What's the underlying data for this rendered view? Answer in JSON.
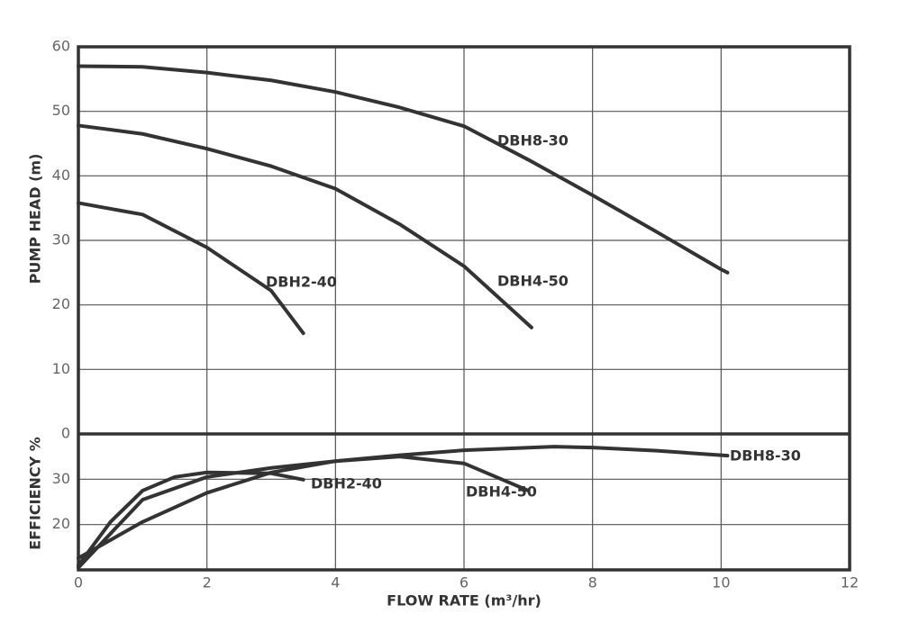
{
  "chart_data": [
    {
      "type": "line",
      "ylabel": "PUMP HEAD (m)",
      "xlim": [
        0,
        12
      ],
      "ylim": [
        0,
        60
      ],
      "yticks": [
        0,
        10,
        20,
        30,
        40,
        50,
        60
      ],
      "grid": true,
      "series": [
        {
          "name": "DBH8-30",
          "color": "#333333",
          "x": [
            0,
            1,
            2,
            3,
            4,
            5,
            6,
            7,
            8,
            9,
            10,
            10.1
          ],
          "values": [
            57,
            56.9,
            56,
            54.8,
            53,
            50.6,
            47.7,
            42.5,
            37,
            31.3,
            25.5,
            25
          ]
        },
        {
          "name": "DBH4-50",
          "color": "#333333",
          "x": [
            0,
            1,
            2,
            3,
            4,
            5,
            6,
            7.05
          ],
          "values": [
            47.8,
            46.5,
            44.2,
            41.5,
            38,
            32.5,
            26,
            16.5
          ]
        },
        {
          "name": "DBH2-40",
          "color": "#333333",
          "x": [
            0,
            1,
            2,
            3,
            3.5
          ],
          "values": [
            35.8,
            34,
            28.9,
            22.2,
            15.6
          ]
        }
      ]
    },
    {
      "type": "line",
      "ylabel": "EFFICIENCY %",
      "xlabel": "FLOW RATE (m³/hr)",
      "xlim": [
        0,
        12
      ],
      "xticks": [
        0,
        2,
        4,
        6,
        8,
        10,
        12
      ],
      "ylim": [
        10,
        40
      ],
      "yticks": [
        20,
        30
      ],
      "grid": true,
      "series": [
        {
          "name": "DBH8-30",
          "color": "#333333",
          "x": [
            0,
            1,
            2,
            3,
            4,
            5,
            6,
            7.4,
            8,
            9,
            10.1
          ],
          "values": [
            10.5,
            25.5,
            30.5,
            32.5,
            34,
            35.3,
            36.4,
            37.2,
            37,
            36.3,
            35.2
          ]
        },
        {
          "name": "DBH4-50",
          "color": "#333333",
          "x": [
            0,
            1,
            2,
            3,
            4,
            5,
            6,
            7
          ],
          "values": [
            12.6,
            20.6,
            27,
            31.5,
            34,
            35,
            33.5,
            27.5
          ]
        },
        {
          "name": "DBH2-40",
          "color": "#333333",
          "x": [
            0,
            0.5,
            1,
            1.5,
            2,
            3,
            3.5
          ],
          "values": [
            11,
            20.6,
            27.5,
            30.5,
            31.5,
            31.3,
            29.9
          ]
        }
      ]
    }
  ]
}
